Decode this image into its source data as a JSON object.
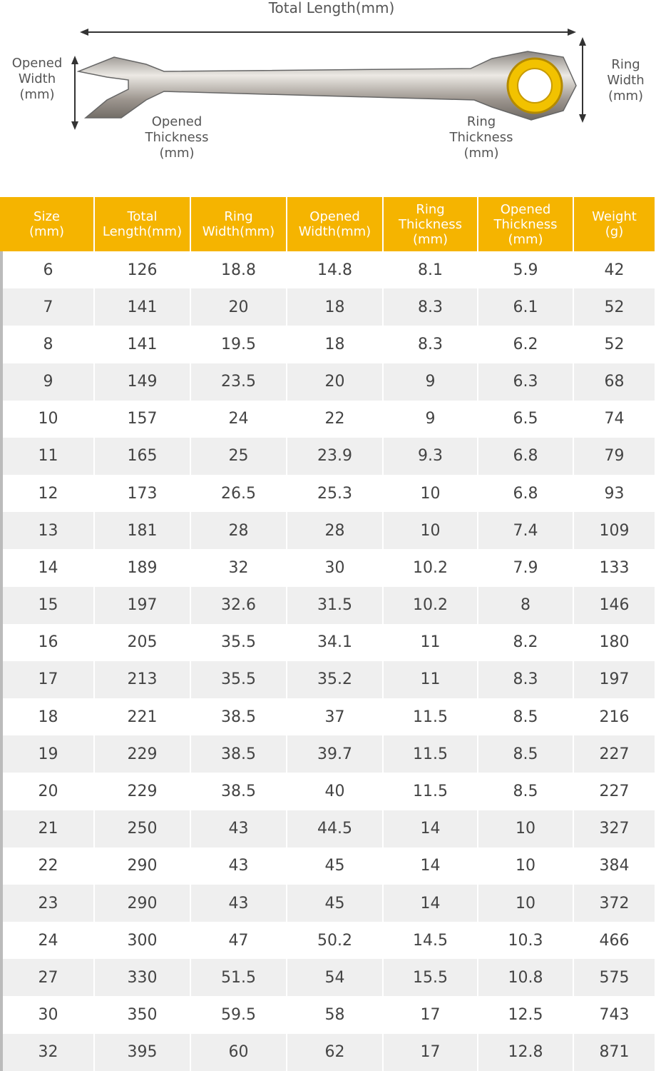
{
  "diagram": {
    "total_length": "Total Length(mm)",
    "opened_width": [
      "Opened",
      "Width",
      "(mm)"
    ],
    "ring_width": [
      "Ring",
      "Width",
      "(mm)"
    ],
    "opened_thickness": [
      "Opened",
      "Thickness",
      "(mm)"
    ],
    "ring_thickness": [
      "Ring",
      "Thickness",
      "(mm)"
    ]
  },
  "table": {
    "header": [
      [
        "Size",
        "(mm)"
      ],
      [
        "Total",
        "Length(mm)"
      ],
      [
        "Ring",
        "Width(mm)"
      ],
      [
        "Opened",
        "Width(mm)"
      ],
      [
        "Ring",
        "Thickness",
        "(mm)"
      ],
      [
        "Opened",
        "Thickness",
        "(mm)"
      ],
      [
        "Weight",
        "(g)"
      ]
    ],
    "rows": [
      [
        "6",
        "126",
        "18.8",
        "14.8",
        "8.1",
        "5.9",
        "42"
      ],
      [
        "7",
        "141",
        "20",
        "18",
        "8.3",
        "6.1",
        "52"
      ],
      [
        "8",
        "141",
        "19.5",
        "18",
        "8.3",
        "6.2",
        "52"
      ],
      [
        "9",
        "149",
        "23.5",
        "20",
        "9",
        "6.3",
        "68"
      ],
      [
        "10",
        "157",
        "24",
        "22",
        "9",
        "6.5",
        "74"
      ],
      [
        "11",
        "165",
        "25",
        "23.9",
        "9.3",
        "6.8",
        "79"
      ],
      [
        "12",
        "173",
        "26.5",
        "25.3",
        "10",
        "6.8",
        "93"
      ],
      [
        "13",
        "181",
        "28",
        "28",
        "10",
        "7.4",
        "109"
      ],
      [
        "14",
        "189",
        "32",
        "30",
        "10.2",
        "7.9",
        "133"
      ],
      [
        "15",
        "197",
        "32.6",
        "31.5",
        "10.2",
        "8",
        "146"
      ],
      [
        "16",
        "205",
        "35.5",
        "34.1",
        "11",
        "8.2",
        "180"
      ],
      [
        "17",
        "213",
        "35.5",
        "35.2",
        "11",
        "8.3",
        "197"
      ],
      [
        "18",
        "221",
        "38.5",
        "37",
        "11.5",
        "8.5",
        "216"
      ],
      [
        "19",
        "229",
        "38.5",
        "39.7",
        "11.5",
        "8.5",
        "227"
      ],
      [
        "20",
        "229",
        "38.5",
        "40",
        "11.5",
        "8.5",
        "227"
      ],
      [
        "21",
        "250",
        "43",
        "44.5",
        "14",
        "10",
        "327"
      ],
      [
        "22",
        "290",
        "43",
        "45",
        "14",
        "10",
        "384"
      ],
      [
        "23",
        "290",
        "43",
        "45",
        "14",
        "10",
        "372"
      ],
      [
        "24",
        "300",
        "47",
        "50.2",
        "14.5",
        "10.3",
        "466"
      ],
      [
        "27",
        "330",
        "51.5",
        "54",
        "15.5",
        "10.8",
        "575"
      ],
      [
        "30",
        "350",
        "59.5",
        "58",
        "17",
        "12.5",
        "743"
      ],
      [
        "32",
        "395",
        "60",
        "62",
        "17",
        "12.8",
        "871"
      ]
    ]
  }
}
